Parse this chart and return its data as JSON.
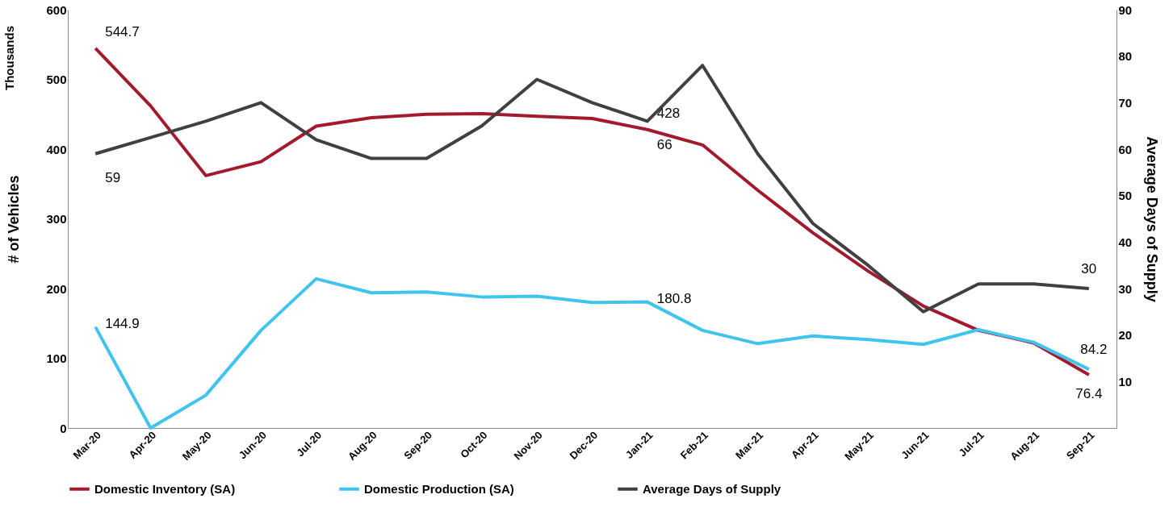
{
  "chart_data": {
    "type": "line",
    "categories": [
      "Mar-20",
      "Apr-20",
      "May-20",
      "Jun-20",
      "Jul-20",
      "Aug-20",
      "Sep-20",
      "Oct-20",
      "Nov-20",
      "Dec-20",
      "Jan-21",
      "Feb-21",
      "Mar-21",
      "Apr-21",
      "May-21",
      "Jun-21",
      "Jul-21",
      "Aug-21",
      "Sep-21"
    ],
    "ylabel": "# of Vehicles",
    "y2label": "Average Days of Supply",
    "annotations": [
      "Thousands"
    ],
    "ylim": [
      0,
      600
    ],
    "yticks": [
      0,
      100,
      200,
      300,
      400,
      500,
      600
    ],
    "y2lim": [
      0,
      90
    ],
    "y2ticks": [
      10,
      20,
      30,
      40,
      50,
      60,
      70,
      80,
      90
    ],
    "grid": false,
    "legend": "bottom",
    "marker": "none",
    "line_style": "solid",
    "series": [
      {
        "name": "Domestic Inventory (SA)",
        "color": "#a31a2e",
        "values": [
          544.7,
          462,
          362,
          382,
          433,
          445,
          450,
          451,
          447,
          444,
          428,
          406,
          341,
          280,
          225,
          175,
          140,
          122,
          76.4
        ],
        "value_labels": [
          "544.7",
          null,
          null,
          null,
          null,
          null,
          null,
          null,
          null,
          null,
          "428",
          null,
          null,
          null,
          null,
          null,
          null,
          null,
          "76.4"
        ]
      },
      {
        "name": "Domestic Production (SA)",
        "color": "#40c4ee",
        "values": [
          144.9,
          0,
          47,
          140,
          214,
          194,
          195,
          188,
          189,
          180,
          180.8,
          140,
          121,
          132,
          127,
          120,
          141,
          123,
          84.2
        ],
        "value_labels": [
          "144.9",
          null,
          null,
          null,
          null,
          null,
          null,
          null,
          null,
          null,
          "180.8",
          null,
          null,
          null,
          null,
          null,
          null,
          null,
          "84.2"
        ]
      },
      {
        "name": "Average Days of Supply",
        "color": "#404040",
        "axis": "y2",
        "values": [
          59,
          62.5,
          66,
          70,
          62,
          58,
          58,
          65,
          75,
          70,
          66,
          78,
          59,
          44,
          35,
          25,
          31,
          31,
          30
        ],
        "value_labels": [
          "59",
          null,
          null,
          null,
          null,
          null,
          null,
          null,
          null,
          null,
          "66",
          null,
          null,
          null,
          null,
          null,
          null,
          null,
          "30"
        ]
      }
    ]
  }
}
